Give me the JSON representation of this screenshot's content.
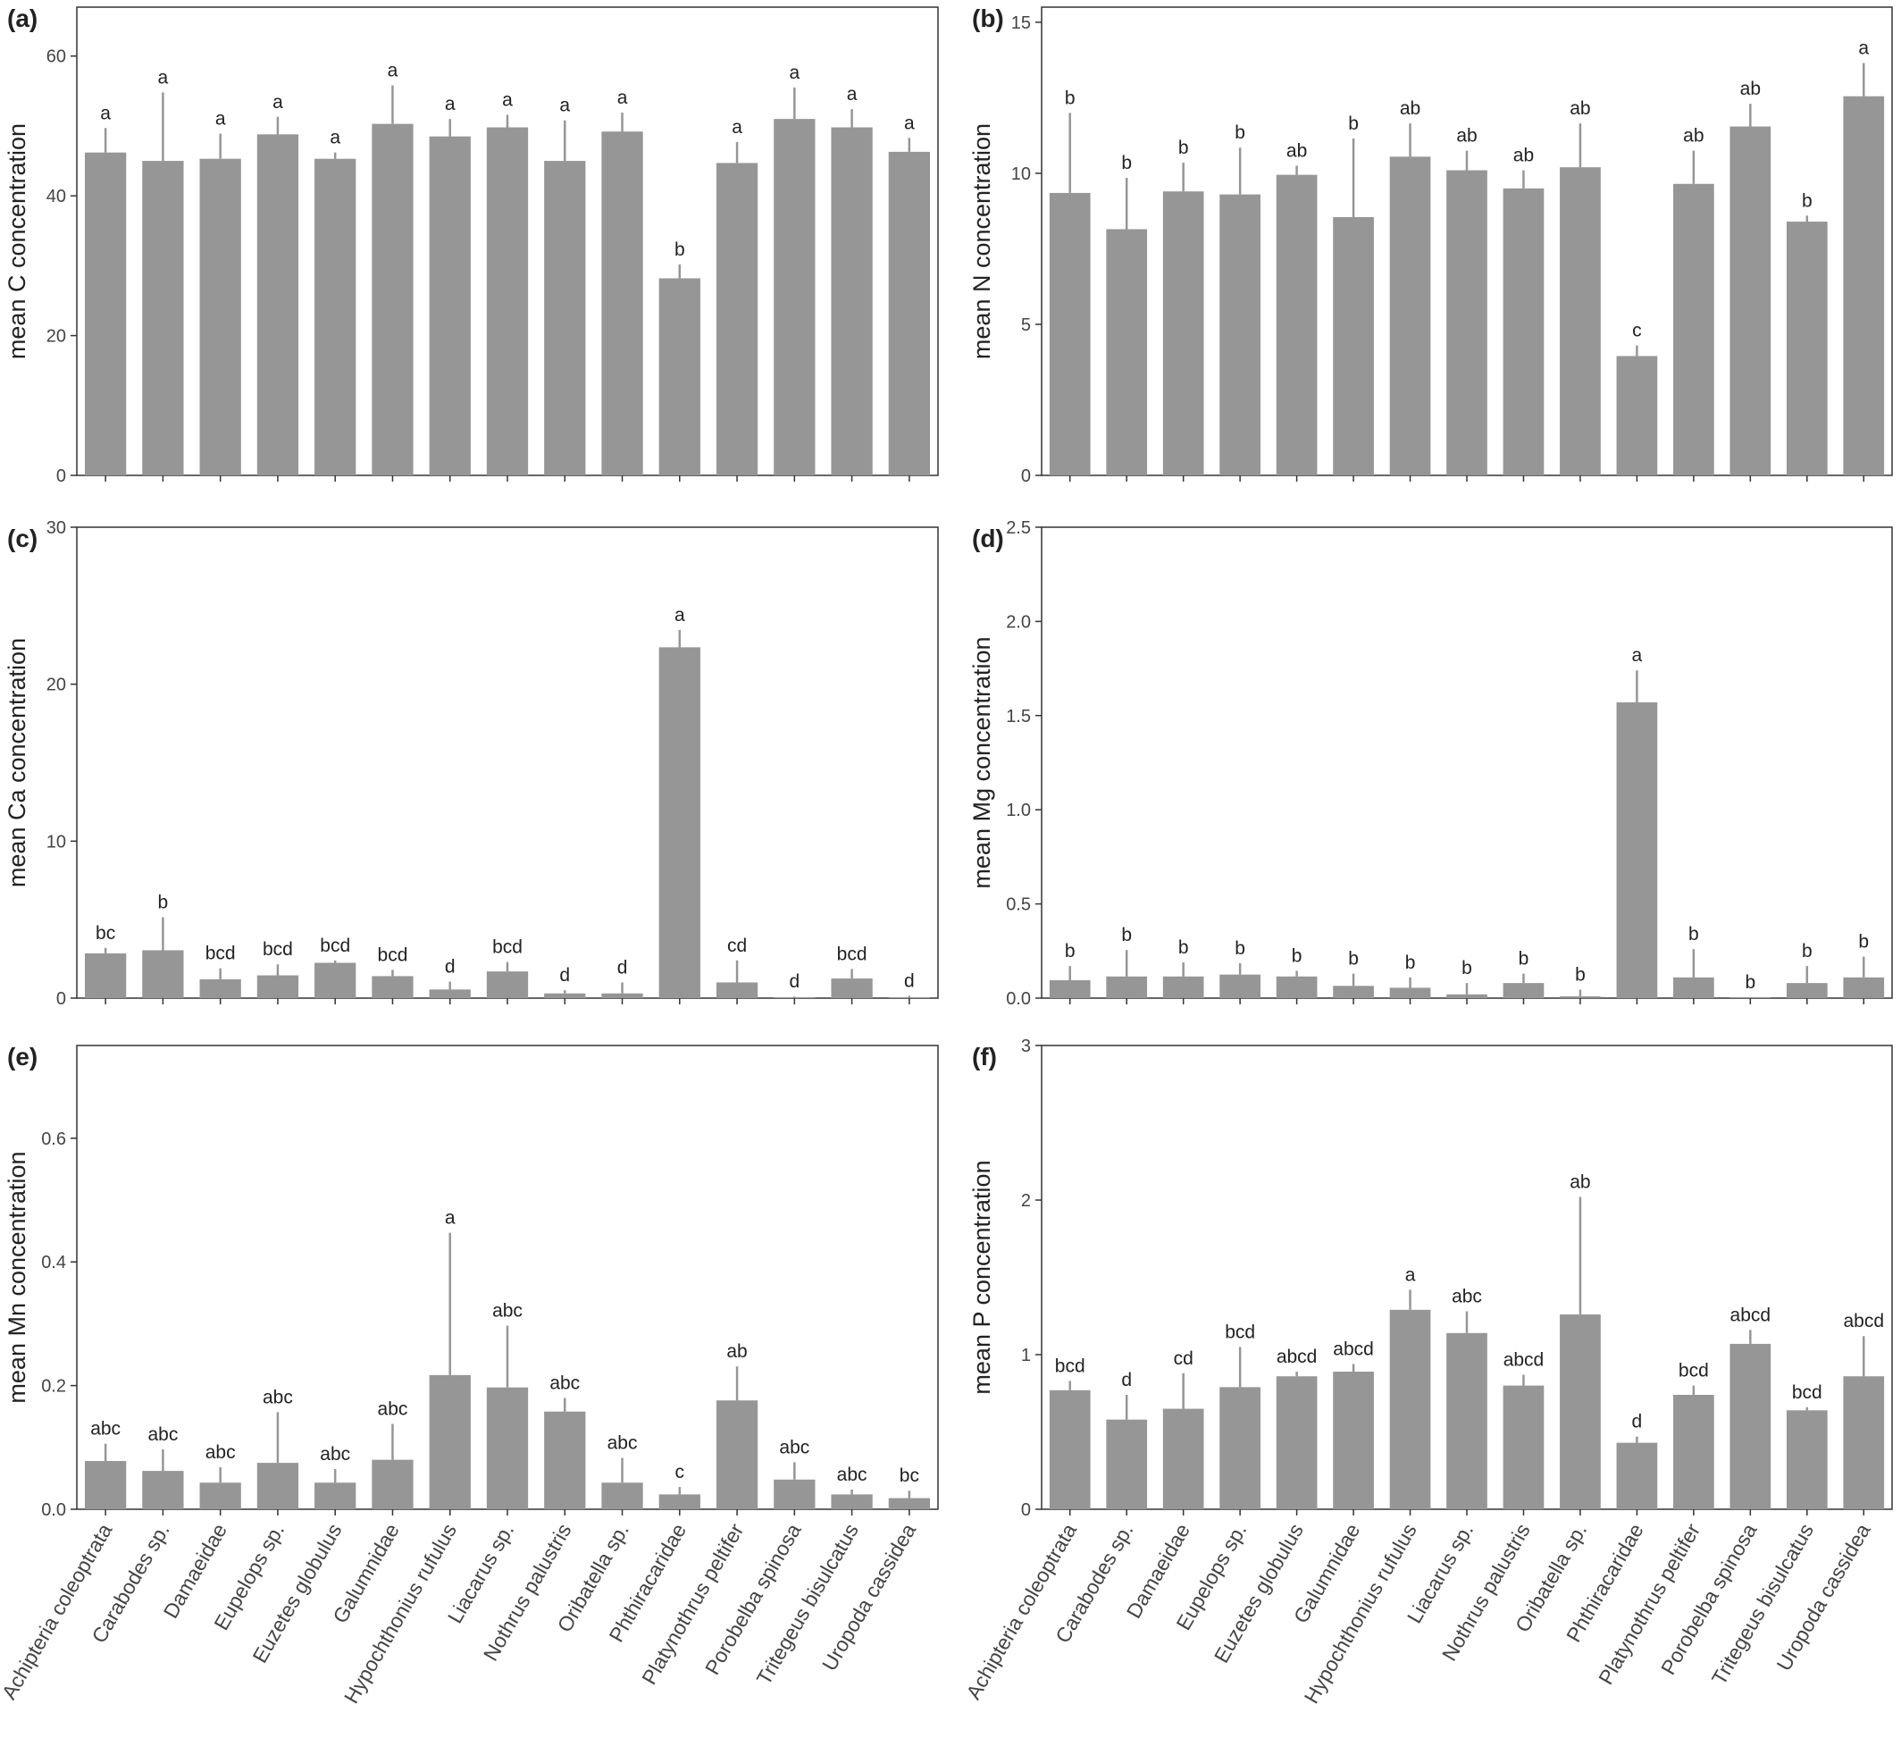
{
  "species": [
    "Achipteria coleoptrata",
    "Carabodes sp.",
    "Damaeidae",
    "Eupelops sp.",
    "Euzetes globulus",
    "Galumnidae",
    "Hypochthonius rufulus",
    "Liacarus sp.",
    "Nothrus palustris",
    "Oribatella sp.",
    "Phthiracaridae",
    "Platynothrus peltifer",
    "Porobelba spinosa",
    "Tritegeus bisulcatus",
    "Uropoda cassidea"
  ],
  "colors": {
    "bar": "#969696",
    "error": "#969696",
    "axis": "#333333",
    "text": "#222222"
  },
  "chart_data": [
    {
      "type": "bar",
      "panel": "(a)",
      "ylabel": "mean C concentration",
      "ylim": [
        0,
        67
      ],
      "yticks": [
        "0",
        "20",
        "40",
        "60"
      ],
      "ytick_values": [
        0,
        20,
        40,
        60
      ],
      "values": [
        46.2,
        45.0,
        45.3,
        48.8,
        45.3,
        50.3,
        48.5,
        49.8,
        45.0,
        49.2,
        28.2,
        44.7,
        51.0,
        49.8,
        46.3
      ],
      "errors": [
        3.5,
        9.8,
        3.6,
        2.5,
        0.9,
        5.5,
        2.5,
        1.8,
        5.8,
        2.7,
        2.0,
        3.0,
        4.5,
        2.6,
        2.0
      ],
      "letters": [
        "a",
        "a",
        "a",
        "a",
        "a",
        "a",
        "a",
        "a",
        "a",
        "a",
        "b",
        "a",
        "a",
        "a",
        "a"
      ]
    },
    {
      "type": "bar",
      "panel": "(b)",
      "ylabel": "mean N concentration",
      "ylim": [
        0,
        15.5
      ],
      "yticks": [
        "0",
        "5",
        "10",
        "15"
      ],
      "ytick_values": [
        0,
        5,
        10,
        15
      ],
      "values": [
        9.35,
        8.15,
        9.4,
        9.3,
        9.95,
        8.55,
        10.55,
        10.1,
        9.5,
        10.2,
        3.95,
        9.65,
        11.55,
        8.4,
        12.55
      ],
      "errors": [
        2.65,
        1.7,
        0.95,
        1.55,
        0.3,
        2.6,
        1.1,
        0.65,
        0.6,
        1.45,
        0.35,
        1.1,
        0.75,
        0.2,
        1.1
      ],
      "letters": [
        "b",
        "b",
        "b",
        "b",
        "ab",
        "b",
        "ab",
        "ab",
        "ab",
        "ab",
        "c",
        "ab",
        "ab",
        "b",
        "a"
      ]
    },
    {
      "type": "bar",
      "panel": "(c)",
      "ylabel": "mean Ca concentration",
      "ylim": [
        0,
        30
      ],
      "yticks": [
        "0",
        "10",
        "20",
        "30"
      ],
      "ytick_values": [
        0,
        10,
        20,
        30
      ],
      "values": [
        2.85,
        3.05,
        1.2,
        1.45,
        2.25,
        1.4,
        0.55,
        1.7,
        0.3,
        0.3,
        22.35,
        1.0,
        0.05,
        1.25,
        0.05
      ],
      "errors": [
        0.35,
        2.1,
        0.7,
        0.7,
        0.15,
        0.4,
        0.5,
        0.6,
        0.2,
        0.7,
        1.1,
        1.4,
        0.05,
        0.6,
        0.1
      ],
      "letters": [
        "bc",
        "b",
        "bcd",
        "bcd",
        "bcd",
        "bcd",
        "d",
        "bcd",
        "d",
        "d",
        "a",
        "cd",
        "d",
        "bcd",
        "d"
      ]
    },
    {
      "type": "bar",
      "panel": "(d)",
      "ylabel": "mean Mg concentration",
      "ylim": [
        0,
        2.5
      ],
      "yticks": [
        "0.0",
        "0.5",
        "1.0",
        "1.5",
        "2.0",
        "2.5"
      ],
      "ytick_values": [
        0,
        0.5,
        1.0,
        1.5,
        2.0,
        2.5
      ],
      "values": [
        0.095,
        0.115,
        0.115,
        0.125,
        0.115,
        0.065,
        0.055,
        0.02,
        0.08,
        0.01,
        1.57,
        0.11,
        0.005,
        0.08,
        0.11
      ],
      "errors": [
        0.075,
        0.14,
        0.075,
        0.06,
        0.03,
        0.065,
        0.055,
        0.06,
        0.05,
        0.035,
        0.17,
        0.15,
        0.0,
        0.09,
        0.11
      ],
      "letters": [
        "b",
        "b",
        "b",
        "b",
        "b",
        "b",
        "b",
        "b",
        "b",
        "b",
        "a",
        "b",
        "b",
        "b",
        "b"
      ]
    },
    {
      "type": "bar",
      "panel": "(e)",
      "ylabel": "mean Mn concentration",
      "ylim": [
        0,
        0.75
      ],
      "yticks": [
        "0.0",
        "0.2",
        "0.4",
        "0.6"
      ],
      "ytick_values": [
        0,
        0.2,
        0.4,
        0.6
      ],
      "values": [
        0.078,
        0.062,
        0.043,
        0.075,
        0.043,
        0.08,
        0.217,
        0.197,
        0.158,
        0.043,
        0.024,
        0.176,
        0.048,
        0.024,
        0.018
      ],
      "errors": [
        0.028,
        0.035,
        0.025,
        0.082,
        0.022,
        0.058,
        0.23,
        0.1,
        0.022,
        0.04,
        0.012,
        0.055,
        0.028,
        0.008,
        0.012
      ],
      "letters": [
        "abc",
        "abc",
        "abc",
        "abc",
        "abc",
        "abc",
        "a",
        "abc",
        "abc",
        "abc",
        "c",
        "ab",
        "abc",
        "abc",
        "bc"
      ]
    },
    {
      "type": "bar",
      "panel": "(f)",
      "ylabel": "mean P concentration",
      "ylim": [
        0,
        3
      ],
      "yticks": [
        "0",
        "1",
        "2",
        "3"
      ],
      "ytick_values": [
        0,
        1,
        2,
        3
      ],
      "values": [
        0.77,
        0.58,
        0.65,
        0.79,
        0.86,
        0.89,
        1.29,
        1.14,
        0.8,
        1.26,
        0.43,
        0.74,
        1.07,
        0.64,
        0.86
      ],
      "errors": [
        0.06,
        0.16,
        0.23,
        0.26,
        0.03,
        0.05,
        0.13,
        0.14,
        0.07,
        0.76,
        0.04,
        0.06,
        0.09,
        0.02,
        0.26
      ],
      "letters": [
        "bcd",
        "d",
        "cd",
        "bcd",
        "abcd",
        "abcd",
        "a",
        "abc",
        "abcd",
        "ab",
        "d",
        "bcd",
        "abcd",
        "bcd",
        "abcd"
      ]
    }
  ]
}
